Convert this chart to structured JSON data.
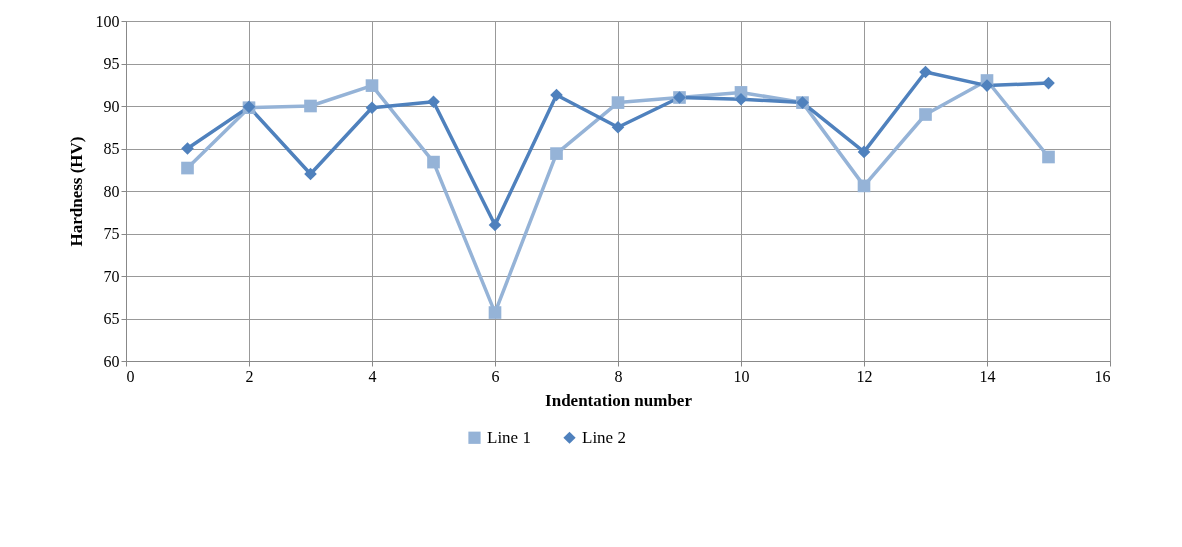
{
  "chart_data": {
    "type": "line",
    "xlabel": "Indentation number",
    "ylabel": "Hardness (HV)",
    "x": [
      1,
      2,
      3,
      4,
      5,
      6,
      7,
      8,
      9,
      10,
      11,
      12,
      13,
      14,
      15
    ],
    "series": [
      {
        "name": "Line 1",
        "color": "#95b3d7",
        "marker": "square",
        "values": [
          82.7,
          89.8,
          90,
          92.4,
          83.4,
          65.7,
          84.4,
          90.4,
          91,
          91.6,
          90.4,
          80.6,
          89,
          93,
          84
        ]
      },
      {
        "name": "Line 2",
        "color": "#4f81bd",
        "marker": "diamond",
        "values": [
          85,
          89.9,
          82,
          89.8,
          90.5,
          76,
          91.3,
          87.5,
          91,
          90.8,
          90.4,
          84.6,
          94,
          92.4,
          92.7
        ]
      }
    ],
    "xlim": [
      0,
      16
    ],
    "xticks": [
      0,
      2,
      4,
      6,
      8,
      10,
      12,
      14,
      16
    ],
    "ylim": [
      60,
      100
    ],
    "yticks": [
      60,
      65,
      70,
      75,
      80,
      85,
      90,
      95,
      100
    ],
    "grid": true,
    "legend": "bottom"
  }
}
